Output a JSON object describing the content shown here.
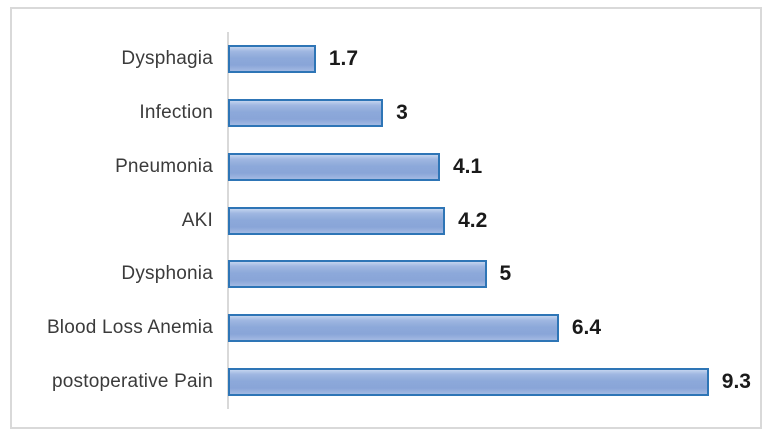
{
  "chart_data": {
    "type": "bar",
    "orientation": "horizontal",
    "title": "",
    "xlabel": "",
    "ylabel": "",
    "categories": [
      "Dysphagia",
      "Infection",
      "Pneumonia",
      "AKI",
      "Dysphonia",
      "Blood Loss Anemia",
      "postoperative Pain"
    ],
    "values": [
      1.7,
      3,
      4.1,
      4.2,
      5,
      6.4,
      9.3
    ],
    "value_labels": [
      "1.7",
      "3",
      "4.1",
      "4.2",
      "5",
      "6.4",
      "9.3"
    ],
    "xlim": [
      0,
      10
    ],
    "grid": false,
    "legend": false,
    "colors": {
      "bar_fill": "#8FAADC",
      "bar_border": "#2E75B6",
      "axis_line": "#D9D9D9",
      "frame_border": "#D9D9D9",
      "category_label": "#3B3B3B",
      "value_label": "#1A1A1A",
      "background": "#FFFFFF"
    }
  }
}
